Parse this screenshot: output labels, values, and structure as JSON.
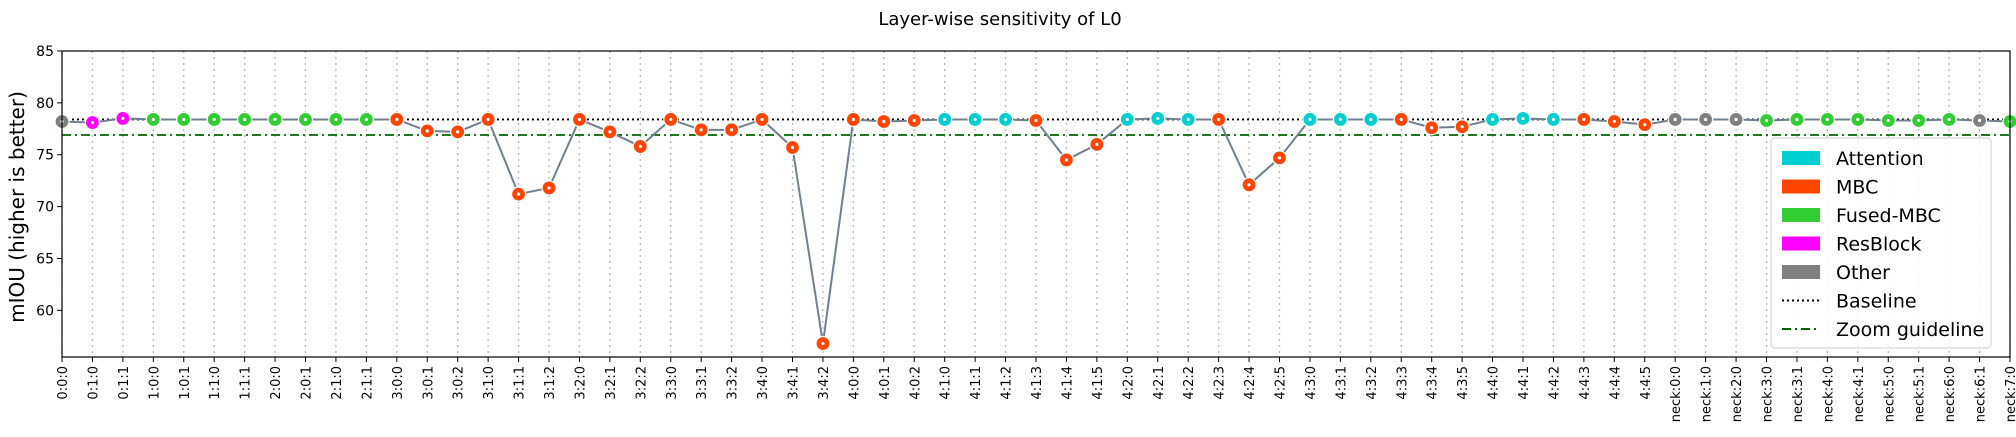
{
  "chart_data": {
    "type": "scatter",
    "title": "Layer-wise sensitivity of L0",
    "xlabel": "",
    "ylabel": "mIOU (higher is better)",
    "ylim": [
      55.5,
      85
    ],
    "yticks": [
      60,
      65,
      70,
      75,
      80,
      85
    ],
    "grid_x": true,
    "grid_y": false,
    "legend_position": "right",
    "baseline": 78.4,
    "zoom_guideline": 76.9,
    "categories": [
      "0:0:0",
      "0:1:0",
      "0:1:1",
      "1:0:0",
      "1:0:1",
      "1:1:0",
      "1:1:1",
      "2:0:0",
      "2:0:1",
      "2:1:0",
      "2:1:1",
      "3:0:0",
      "3:0:1",
      "3:0:2",
      "3:1:0",
      "3:1:1",
      "3:1:2",
      "3:2:0",
      "3:2:1",
      "3:2:2",
      "3:3:0",
      "3:3:1",
      "3:3:2",
      "3:4:0",
      "3:4:1",
      "3:4:2",
      "4:0:0",
      "4:0:1",
      "4:0:2",
      "4:1:0",
      "4:1:1",
      "4:1:2",
      "4:1:3",
      "4:1:4",
      "4:1:5",
      "4:2:0",
      "4:2:1",
      "4:2:2",
      "4:2:3",
      "4:2:4",
      "4:2:5",
      "4:3:0",
      "4:3:1",
      "4:3:2",
      "4:3:3",
      "4:3:4",
      "4:3:5",
      "4:4:0",
      "4:4:1",
      "4:4:2",
      "4:4:3",
      "4:4:4",
      "4:4:5",
      "neck:0:0",
      "neck:1:0",
      "neck:2:0",
      "neck:3:0",
      "neck:3:1",
      "neck:4:0",
      "neck:4:1",
      "neck:5:0",
      "neck:5:1",
      "neck:6:0",
      "neck:6:1",
      "neck:7:0"
    ],
    "values": [
      78.2,
      78.1,
      78.5,
      78.4,
      78.4,
      78.4,
      78.4,
      78.4,
      78.4,
      78.4,
      78.4,
      78.4,
      77.3,
      77.2,
      78.4,
      71.2,
      71.8,
      78.4,
      77.2,
      75.8,
      78.4,
      77.4,
      77.4,
      78.4,
      75.7,
      56.8,
      78.4,
      78.2,
      78.3,
      78.4,
      78.4,
      78.4,
      78.3,
      74.5,
      76.0,
      78.4,
      78.5,
      78.4,
      78.4,
      72.1,
      74.7,
      78.4,
      78.4,
      78.4,
      78.4,
      77.6,
      77.7,
      78.4,
      78.5,
      78.4,
      78.4,
      78.2,
      77.9,
      78.4,
      78.4,
      78.4,
      78.3,
      78.4,
      78.4,
      78.4,
      78.3,
      78.3,
      78.4,
      78.3,
      78.2
    ],
    "block_types": [
      "Other",
      "ResBlock",
      "ResBlock",
      "Fused-MBC",
      "Fused-MBC",
      "Fused-MBC",
      "Fused-MBC",
      "Fused-MBC",
      "Fused-MBC",
      "Fused-MBC",
      "Fused-MBC",
      "MBC",
      "MBC",
      "MBC",
      "MBC",
      "MBC",
      "MBC",
      "MBC",
      "MBC",
      "MBC",
      "MBC",
      "MBC",
      "MBC",
      "MBC",
      "MBC",
      "MBC",
      "MBC",
      "MBC",
      "MBC",
      "Attention",
      "Attention",
      "Attention",
      "MBC",
      "MBC",
      "MBC",
      "Attention",
      "Attention",
      "Attention",
      "MBC",
      "MBC",
      "MBC",
      "Attention",
      "Attention",
      "Attention",
      "MBC",
      "MBC",
      "MBC",
      "Attention",
      "Attention",
      "Attention",
      "MBC",
      "MBC",
      "MBC",
      "Other",
      "Other",
      "Other",
      "Fused-MBC",
      "Fused-MBC",
      "Fused-MBC",
      "Fused-MBC",
      "Fused-MBC",
      "Fused-MBC",
      "Fused-MBC",
      "Other",
      "Fused-MBC"
    ],
    "legend": [
      {
        "label": "Attention",
        "kind": "patch",
        "color": "#00CED1"
      },
      {
        "label": "MBC",
        "kind": "patch",
        "color": "#FF4500"
      },
      {
        "label": "Fused-MBC",
        "kind": "patch",
        "color": "#32CD32"
      },
      {
        "label": "ResBlock",
        "kind": "patch",
        "color": "#FF00FF"
      },
      {
        "label": "Other",
        "kind": "patch",
        "color": "#808080"
      },
      {
        "label": "Baseline",
        "kind": "dotted",
        "color": "#000000"
      },
      {
        "label": "Zoom guideline",
        "kind": "dashdot",
        "color": "#006400"
      }
    ],
    "line_color": "#708090"
  }
}
